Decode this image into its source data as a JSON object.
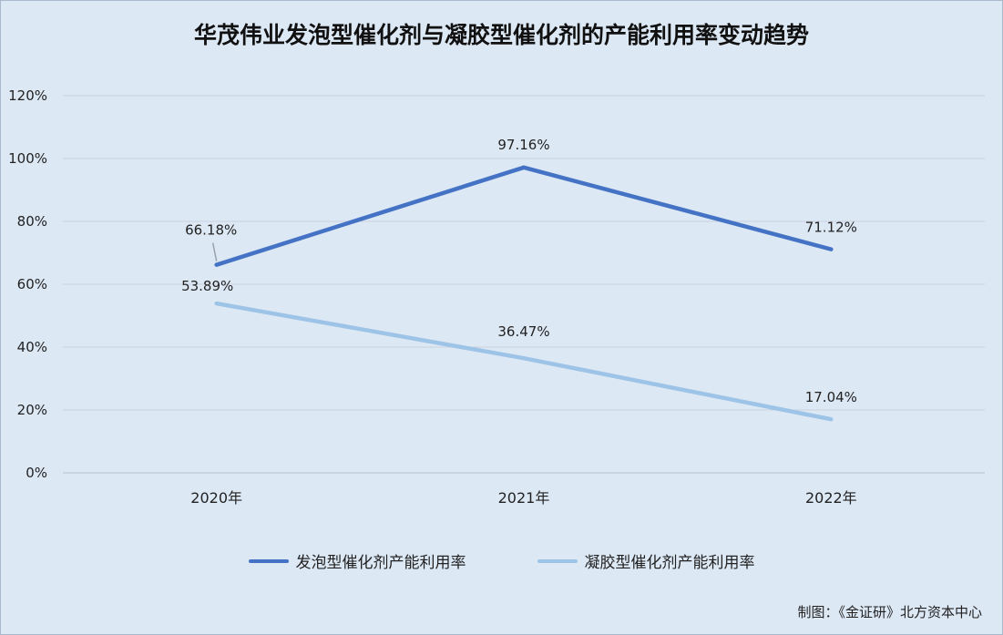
{
  "chart_data": {
    "type": "line",
    "title": "华茂伟业发泡型催化剂与凝胶型催化剂的产能利用率变动趋势",
    "categories": [
      "2020年",
      "2021年",
      "2022年"
    ],
    "series": [
      {
        "name": "发泡型催化剂产能利用率",
        "values": [
          66.18,
          97.16,
          71.12
        ],
        "labels": [
          "66.18%",
          "97.16%",
          "71.12%"
        ],
        "color": "#4472c4"
      },
      {
        "name": "凝胶型催化剂产能利用率",
        "values": [
          53.89,
          36.47,
          17.04
        ],
        "labels": [
          "53.89%",
          "36.47%",
          "17.04%"
        ],
        "color": "#9dc3e6"
      }
    ],
    "yticks": [
      "0%",
      "20%",
      "40%",
      "60%",
      "80%",
      "100%",
      "120%"
    ],
    "ylim": [
      0,
      120
    ],
    "grid": true,
    "legend_position": "bottom"
  },
  "source_note": "制图：《金证研》北方资本中心"
}
